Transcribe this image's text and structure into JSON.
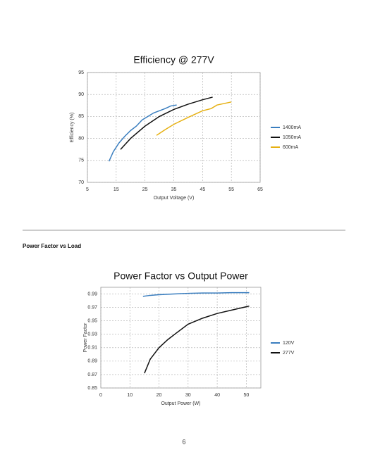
{
  "chart_data": [
    {
      "type": "line",
      "title": "Efficiency @ 277V",
      "x_label": "Output Voltage (V)",
      "y_label": "Efficiency (%)",
      "xlim": [
        5,
        65
      ],
      "xticks": [
        5,
        15,
        25,
        35,
        45,
        55,
        65
      ],
      "ylim": [
        70,
        95
      ],
      "yticks": [
        70,
        75,
        80,
        85,
        90,
        95
      ],
      "grid": true,
      "legend": "right",
      "series": [
        {
          "name": "1400mA",
          "color": "#3a7ebf",
          "x": [
            12.5,
            14,
            16,
            18,
            20,
            22,
            24,
            26,
            28,
            30,
            32,
            34,
            36
          ],
          "values": [
            74.8,
            77,
            79,
            80.5,
            81.8,
            82.8,
            84.2,
            85,
            85.8,
            86.3,
            86.8,
            87.4,
            87.6
          ]
        },
        {
          "name": "1050mA",
          "color": "#111111",
          "x": [
            16.5,
            20,
            25,
            30,
            35,
            40,
            45,
            48.5
          ],
          "values": [
            77.5,
            80,
            82.8,
            85,
            86.6,
            87.8,
            88.8,
            89.4
          ]
        },
        {
          "name": "600mA",
          "color": "#e6b012",
          "x": [
            29,
            32,
            35,
            40,
            45,
            48,
            50,
            55
          ],
          "values": [
            80.7,
            82,
            83.2,
            84.8,
            86.3,
            86.8,
            87.6,
            88.3
          ]
        }
      ]
    },
    {
      "type": "line",
      "title": "Power Factor vs Output Power",
      "x_label": "Output Power (W)",
      "y_label": "Power Factor",
      "xlim": [
        0,
        55
      ],
      "xticks": [
        0,
        10,
        20,
        30,
        40,
        50
      ],
      "ylim": [
        0.85,
        1.0
      ],
      "yticks": [
        0.85,
        0.87,
        0.89,
        0.91,
        0.93,
        0.95,
        0.97,
        0.99
      ],
      "grid": true,
      "legend": "right",
      "series": [
        {
          "name": "120V",
          "color": "#3a7ebf",
          "x": [
            14.5,
            17,
            20,
            25,
            30,
            35,
            40,
            45,
            51
          ],
          "values": [
            0.9865,
            0.988,
            0.989,
            0.99,
            0.991,
            0.9915,
            0.9915,
            0.992,
            0.992
          ]
        },
        {
          "name": "277V",
          "color": "#111111",
          "x": [
            15,
            17,
            20,
            23,
            26,
            30,
            35,
            40,
            45,
            50,
            51
          ],
          "values": [
            0.872,
            0.893,
            0.91,
            0.922,
            0.932,
            0.945,
            0.954,
            0.961,
            0.966,
            0.971,
            0.972
          ]
        }
      ]
    }
  ],
  "section_heading": "Power Factor vs Load",
  "page_number": "6"
}
